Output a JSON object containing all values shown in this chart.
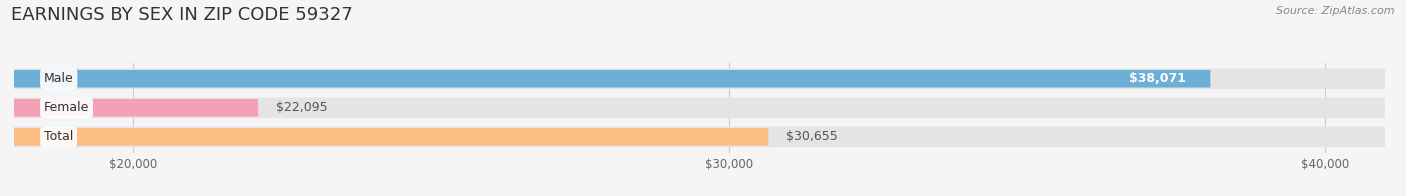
{
  "title": "EARNINGS BY SEX IN ZIP CODE 59327",
  "source": "Source: ZipAtlas.com",
  "categories": [
    "Male",
    "Female",
    "Total"
  ],
  "values": [
    38071,
    22095,
    30655
  ],
  "bar_colors": [
    "#6baed6",
    "#f4a0b5",
    "#fdbe85"
  ],
  "value_labels": [
    "$38,071",
    "$22,095",
    "$30,655"
  ],
  "label_inside": [
    true,
    false,
    false
  ],
  "xlim": [
    18000,
    41000
  ],
  "xticks": [
    20000,
    30000,
    40000
  ],
  "xtick_labels": [
    "$20,000",
    "$30,000",
    "$40,000"
  ],
  "background_color": "#f5f5f5",
  "bar_bg_color": "#e4e4e4",
  "title_fontsize": 13,
  "bar_height": 0.6
}
